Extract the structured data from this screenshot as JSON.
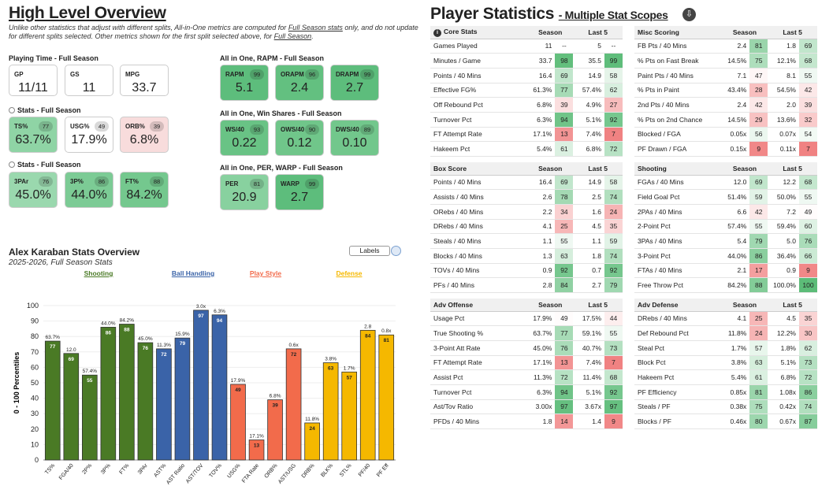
{
  "left": {
    "title": "High Level Overview",
    "note_parts": {
      "a": "Unlike other statistics that adjust with different splits, All-in-One metrics are computed for ",
      "b": "Full Season stats",
      "c": " only, and do not update for different splits selected. Other metrics shown for the first split selected above, for ",
      "d": "Full Season",
      "e": "."
    },
    "playing_time": {
      "label": "Playing Time - Full Season",
      "cards": [
        {
          "label": "GP",
          "value": "11/11"
        },
        {
          "label": "GS",
          "value": "11"
        },
        {
          "label": "MPG",
          "value": "33.7"
        }
      ]
    },
    "stats1": {
      "label": "Stats - Full Season",
      "cards": [
        {
          "label": "TS%",
          "value": "63.7%",
          "pct": "77",
          "color": "#8fd4a5"
        },
        {
          "label": "USG%",
          "value": "17.9%",
          "pct": "49",
          "color": "#ffffff"
        },
        {
          "label": "ORB%",
          "value": "6.8%",
          "pct": "39",
          "color": "#f8dcdc"
        }
      ]
    },
    "stats2": {
      "label": "Stats - Full Season",
      "cards": [
        {
          "label": "3PAr",
          "value": "45.0%",
          "pct": "76",
          "color": "#9ad8ae"
        },
        {
          "label": "3P%",
          "value": "44.0%",
          "pct": "86",
          "color": "#7ccb95"
        },
        {
          "label": "FT%",
          "value": "84.2%",
          "pct": "88",
          "color": "#74c88e"
        }
      ]
    },
    "rapm": {
      "label": "All in One, RAPM - Full Season",
      "cards": [
        {
          "label": "RAPM",
          "value": "5.1",
          "pct": "99",
          "color": "#5dbd7c"
        },
        {
          "label": "ORAPM",
          "value": "2.4",
          "pct": "96",
          "color": "#63c080"
        },
        {
          "label": "DRAPM",
          "value": "2.7",
          "pct": "99",
          "color": "#5dbd7c"
        }
      ]
    },
    "win_shares": {
      "label": "All in One, Win Shares - Full Season",
      "cards": [
        {
          "label": "WS/40",
          "value": "0.22",
          "pct": "93",
          "color": "#69c385"
        },
        {
          "label": "OWS/40",
          "value": "0.12",
          "pct": "90",
          "color": "#70c68a"
        },
        {
          "label": "DWS/40",
          "value": "0.10",
          "pct": "89",
          "color": "#72c78c"
        }
      ]
    },
    "per_warp": {
      "label": "All in One, PER, WARP - Full Season",
      "cards": [
        {
          "label": "PER",
          "value": "20.9",
          "pct": "81",
          "color": "#88d19f"
        },
        {
          "label": "WARP",
          "value": "2.7",
          "pct": "99",
          "color": "#5dbd7c"
        }
      ]
    }
  },
  "chart": {
    "title": "Alex Karaban Stats Overview",
    "subtitle": "2025-2026, Full Season Stats",
    "labels_button": "Labels",
    "groups": [
      {
        "name": "Shooting",
        "color": "#4a7a25"
      },
      {
        "name": "Ball Handling",
        "color": "#3a63a8"
      },
      {
        "name": "Play Style",
        "color": "#f26b4b"
      },
      {
        "name": "Defense",
        "color": "#f5b800"
      }
    ]
  },
  "chart_data": {
    "type": "bar",
    "title": "Alex Karaban Stats Overview",
    "ylabel": "0 - 100 Percentiles",
    "ylim": [
      0,
      100
    ],
    "yticks": [
      0,
      10,
      20,
      30,
      40,
      50,
      60,
      70,
      80,
      90,
      100
    ],
    "categories": [
      "TS%",
      "FGA/40",
      "2P%",
      "3P%",
      "FT%",
      "3PAr",
      "AST%",
      "AST Ratio",
      "AST/TOV",
      "TOV%",
      "USG%",
      "FTA Rate",
      "ORB%",
      "AST/USG",
      "DRB%",
      "BLK%",
      "STL%",
      "PF/40",
      "PF Eff"
    ],
    "values": [
      77,
      69,
      55,
      86,
      88,
      76,
      72,
      79,
      97,
      94,
      49,
      13,
      39,
      72,
      24,
      63,
      57,
      84,
      81
    ],
    "raw_labels": [
      "63.7%",
      "12.0",
      "57.4%",
      "44.0%",
      "84.2%",
      "45.0%",
      "11.3%",
      "15.9%",
      "3.0x",
      "6.3%",
      "17.9%",
      "17.1%",
      "6.8%",
      "0.6x",
      "11.8%",
      "3.8%",
      "1.7%",
      "2.8",
      "0.8x"
    ],
    "group_index": [
      0,
      0,
      0,
      0,
      0,
      0,
      1,
      1,
      1,
      1,
      2,
      2,
      2,
      2,
      3,
      3,
      3,
      3,
      3
    ]
  },
  "right": {
    "title": "Player Statistics",
    "subtitle": "- Multiple Stat Scopes",
    "download_icon": "download-icon",
    "col_season": "Season",
    "col_last5": "Last 5",
    "tables": [
      {
        "key": "core",
        "title": "Core Stats",
        "rows": [
          {
            "name": "Games Played",
            "s": "11",
            "sp": "--",
            "l": "5",
            "lp": "--"
          },
          {
            "name": "Minutes / Game",
            "s": "33.7",
            "sp": "98",
            "l": "35.5",
            "lp": "99"
          },
          {
            "name": "Points / 40 Mins",
            "s": "16.4",
            "sp": "69",
            "l": "14.9",
            "lp": "58"
          },
          {
            "name": "Effective FG%",
            "s": "61.3%",
            "sp": "77",
            "l": "57.4%",
            "lp": "62"
          },
          {
            "name": "Off Rebound Pct",
            "s": "6.8%",
            "sp": "39",
            "l": "4.9%",
            "lp": "27"
          },
          {
            "name": "Turnover Pct",
            "s": "6.3%",
            "sp": "94",
            "l": "5.1%",
            "lp": "92"
          },
          {
            "name": "FT Attempt Rate",
            "s": "17.1%",
            "sp": "13",
            "l": "7.4%",
            "lp": "7"
          },
          {
            "name": "Hakeem Pct",
            "s": "5.4%",
            "sp": "61",
            "l": "6.8%",
            "lp": "72"
          }
        ]
      },
      {
        "key": "misc",
        "title": "Misc Scoring",
        "rows": [
          {
            "name": "FB Pts / 40 Mins",
            "s": "2.4",
            "sp": "81",
            "l": "1.8",
            "lp": "69"
          },
          {
            "name": "% Pts on Fast Break",
            "s": "14.5%",
            "sp": "75",
            "l": "12.1%",
            "lp": "68"
          },
          {
            "name": "Paint Pts / 40 Mins",
            "s": "7.1",
            "sp": "47",
            "l": "8.1",
            "lp": "55"
          },
          {
            "name": "% Pts in Paint",
            "s": "43.4%",
            "sp": "28",
            "l": "54.5%",
            "lp": "42"
          },
          {
            "name": "2nd Pts / 40 Mins",
            "s": "2.4",
            "sp": "42",
            "l": "2.0",
            "lp": "39"
          },
          {
            "name": "% Pts on 2nd Chance",
            "s": "14.5%",
            "sp": "29",
            "l": "13.6%",
            "lp": "32"
          },
          {
            "name": "Blocked / FGA",
            "s": "0.05x",
            "sp": "56",
            "l": "0.07x",
            "lp": "54"
          },
          {
            "name": "PF Drawn / FGA",
            "s": "0.15x",
            "sp": "9",
            "l": "0.11x",
            "lp": "7"
          }
        ]
      },
      {
        "key": "box",
        "title": "Box Score",
        "rows": [
          {
            "name": "Points / 40 Mins",
            "s": "16.4",
            "sp": "69",
            "l": "14.9",
            "lp": "58"
          },
          {
            "name": "Assists / 40 Mins",
            "s": "2.6",
            "sp": "78",
            "l": "2.5",
            "lp": "74"
          },
          {
            "name": "ORebs / 40 Mins",
            "s": "2.2",
            "sp": "34",
            "l": "1.6",
            "lp": "24"
          },
          {
            "name": "DRebs / 40 Mins",
            "s": "4.1",
            "sp": "25",
            "l": "4.5",
            "lp": "35"
          },
          {
            "name": "Steals / 40 Mins",
            "s": "1.1",
            "sp": "55",
            "l": "1.1",
            "lp": "59"
          },
          {
            "name": "Blocks / 40 Mins",
            "s": "1.3",
            "sp": "63",
            "l": "1.8",
            "lp": "74"
          },
          {
            "name": "TOVs / 40 Mins",
            "s": "0.9",
            "sp": "92",
            "l": "0.7",
            "lp": "92"
          },
          {
            "name": "PFs / 40 Mins",
            "s": "2.8",
            "sp": "84",
            "l": "2.7",
            "lp": "79"
          }
        ]
      },
      {
        "key": "shooting",
        "title": "Shooting",
        "rows": [
          {
            "name": "FGAs / 40 Mins",
            "s": "12.0",
            "sp": "69",
            "l": "12.2",
            "lp": "68"
          },
          {
            "name": "Field Goal Pct",
            "s": "51.4%",
            "sp": "59",
            "l": "50.0%",
            "lp": "55"
          },
          {
            "name": "2PAs / 40 Mins",
            "s": "6.6",
            "sp": "42",
            "l": "7.2",
            "lp": "49"
          },
          {
            "name": "2-Point Pct",
            "s": "57.4%",
            "sp": "55",
            "l": "59.4%",
            "lp": "60"
          },
          {
            "name": "3PAs / 40 Mins",
            "s": "5.4",
            "sp": "79",
            "l": "5.0",
            "lp": "76"
          },
          {
            "name": "3-Point Pct",
            "s": "44.0%",
            "sp": "86",
            "l": "36.4%",
            "lp": "66"
          },
          {
            "name": "FTAs / 40 Mins",
            "s": "2.1",
            "sp": "17",
            "l": "0.9",
            "lp": "9"
          },
          {
            "name": "Free Throw Pct",
            "s": "84.2%",
            "sp": "88",
            "l": "100.0%",
            "lp": "100"
          }
        ]
      },
      {
        "key": "advoff",
        "title": "Adv Offense",
        "rows": [
          {
            "name": "Usage Pct",
            "s": "17.9%",
            "sp": "49",
            "l": "17.5%",
            "lp": "44"
          },
          {
            "name": "True Shooting %",
            "s": "63.7%",
            "sp": "77",
            "l": "59.1%",
            "lp": "55"
          },
          {
            "name": "3-Point Att Rate",
            "s": "45.0%",
            "sp": "76",
            "l": "40.7%",
            "lp": "73"
          },
          {
            "name": "FT Attempt Rate",
            "s": "17.1%",
            "sp": "13",
            "l": "7.4%",
            "lp": "7"
          },
          {
            "name": "Assist Pct",
            "s": "11.3%",
            "sp": "72",
            "l": "11.4%",
            "lp": "68"
          },
          {
            "name": "Turnover Pct",
            "s": "6.3%",
            "sp": "94",
            "l": "5.1%",
            "lp": "92"
          },
          {
            "name": "Ast/Tov Ratio",
            "s": "3.00x",
            "sp": "97",
            "l": "3.67x",
            "lp": "97"
          },
          {
            "name": "PFDs / 40 Mins",
            "s": "1.8",
            "sp": "14",
            "l": "1.4",
            "lp": "9"
          }
        ]
      },
      {
        "key": "advdef",
        "title": "Adv Defense",
        "rows": [
          {
            "name": "DRebs / 40 Mins",
            "s": "4.1",
            "sp": "25",
            "l": "4.5",
            "lp": "35"
          },
          {
            "name": "Def Rebound Pct",
            "s": "11.8%",
            "sp": "24",
            "l": "12.2%",
            "lp": "30"
          },
          {
            "name": "Steal Pct",
            "s": "1.7%",
            "sp": "57",
            "l": "1.8%",
            "lp": "62"
          },
          {
            "name": "Block Pct",
            "s": "3.8%",
            "sp": "63",
            "l": "5.1%",
            "lp": "73"
          },
          {
            "name": "Hakeem Pct",
            "s": "5.4%",
            "sp": "61",
            "l": "6.8%",
            "lp": "72"
          },
          {
            "name": "PF Efficiency",
            "s": "0.85x",
            "sp": "81",
            "l": "1.08x",
            "lp": "86"
          },
          {
            "name": "Steals / PF",
            "s": "0.38x",
            "sp": "75",
            "l": "0.42x",
            "lp": "74"
          },
          {
            "name": "Blocks / PF",
            "s": "0.46x",
            "sp": "80",
            "l": "0.67x",
            "lp": "87"
          }
        ]
      }
    ]
  }
}
